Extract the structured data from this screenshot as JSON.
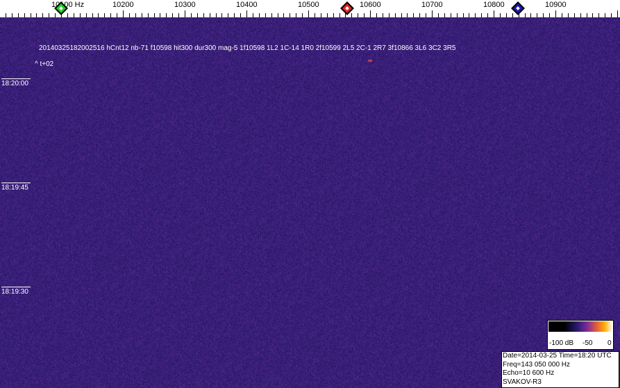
{
  "frequency_axis": {
    "unit_label": "10100 Hz",
    "labels": [
      "10200",
      "10300",
      "10400",
      "10500",
      "10600",
      "10700",
      "10800",
      "10900"
    ],
    "markers": [
      {
        "name": "green",
        "color": "#22cc22",
        "freq_hz": 10100
      },
      {
        "name": "red",
        "color": "#dd2222",
        "freq_hz": 10563
      },
      {
        "name": "blue",
        "color": "#1a1aaa",
        "freq_hz": 10839
      }
    ]
  },
  "annotations": {
    "detection": "20140325182002516 hCnt12 nb-71 f10598 hit300 dur300 mag-5 1f10598 1L2 1C-14 1R0 2f10599 2L5 2C-1 2R7 3f10866 3L6 3C2 3R5",
    "offset": "^ t+02"
  },
  "time_labels": [
    "18:20:00",
    "18:19:45",
    "18:19:30"
  ],
  "color_scale": {
    "labels": [
      "-100 dB",
      "-50",
      "0"
    ]
  },
  "info": {
    "datetime": "Date=2014-03-25 Time=18:20 UTC",
    "freq": "Freq=143 050 000 Hz",
    "echo": "Echo=10 600 Hz",
    "station": "SVAKOV-R3"
  },
  "colors": {
    "background": "#2b1d78",
    "accent": "#ff5040"
  }
}
